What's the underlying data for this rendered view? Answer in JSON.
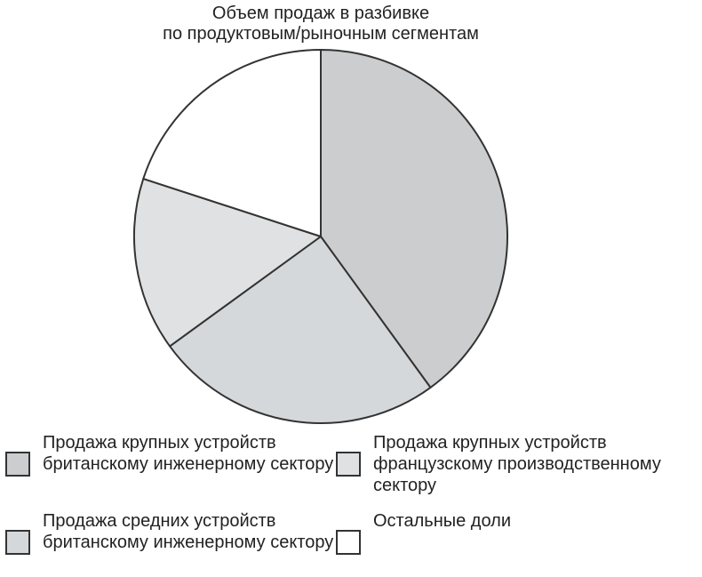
{
  "chart_data": {
    "type": "pie",
    "title_lines": [
      "Объем продаж в разбивке",
      "по продуктовым/рыночным сегментам"
    ],
    "slices": [
      {
        "label": "Продажа крупных устройств британскому инженерному сектору",
        "value": 40,
        "color": "#cbcdce"
      },
      {
        "label": "Продажа средних устройств британскому инженерному сектору",
        "value": 25,
        "color": "#d5d8da"
      },
      {
        "label": "Продажа крупных устройств французскому производственному сектору",
        "value": 15,
        "color": "#dfe1e2"
      },
      {
        "label": "Остальные доли",
        "value": 20,
        "color": "#ffffff"
      }
    ],
    "legend_placement": "bottom"
  }
}
